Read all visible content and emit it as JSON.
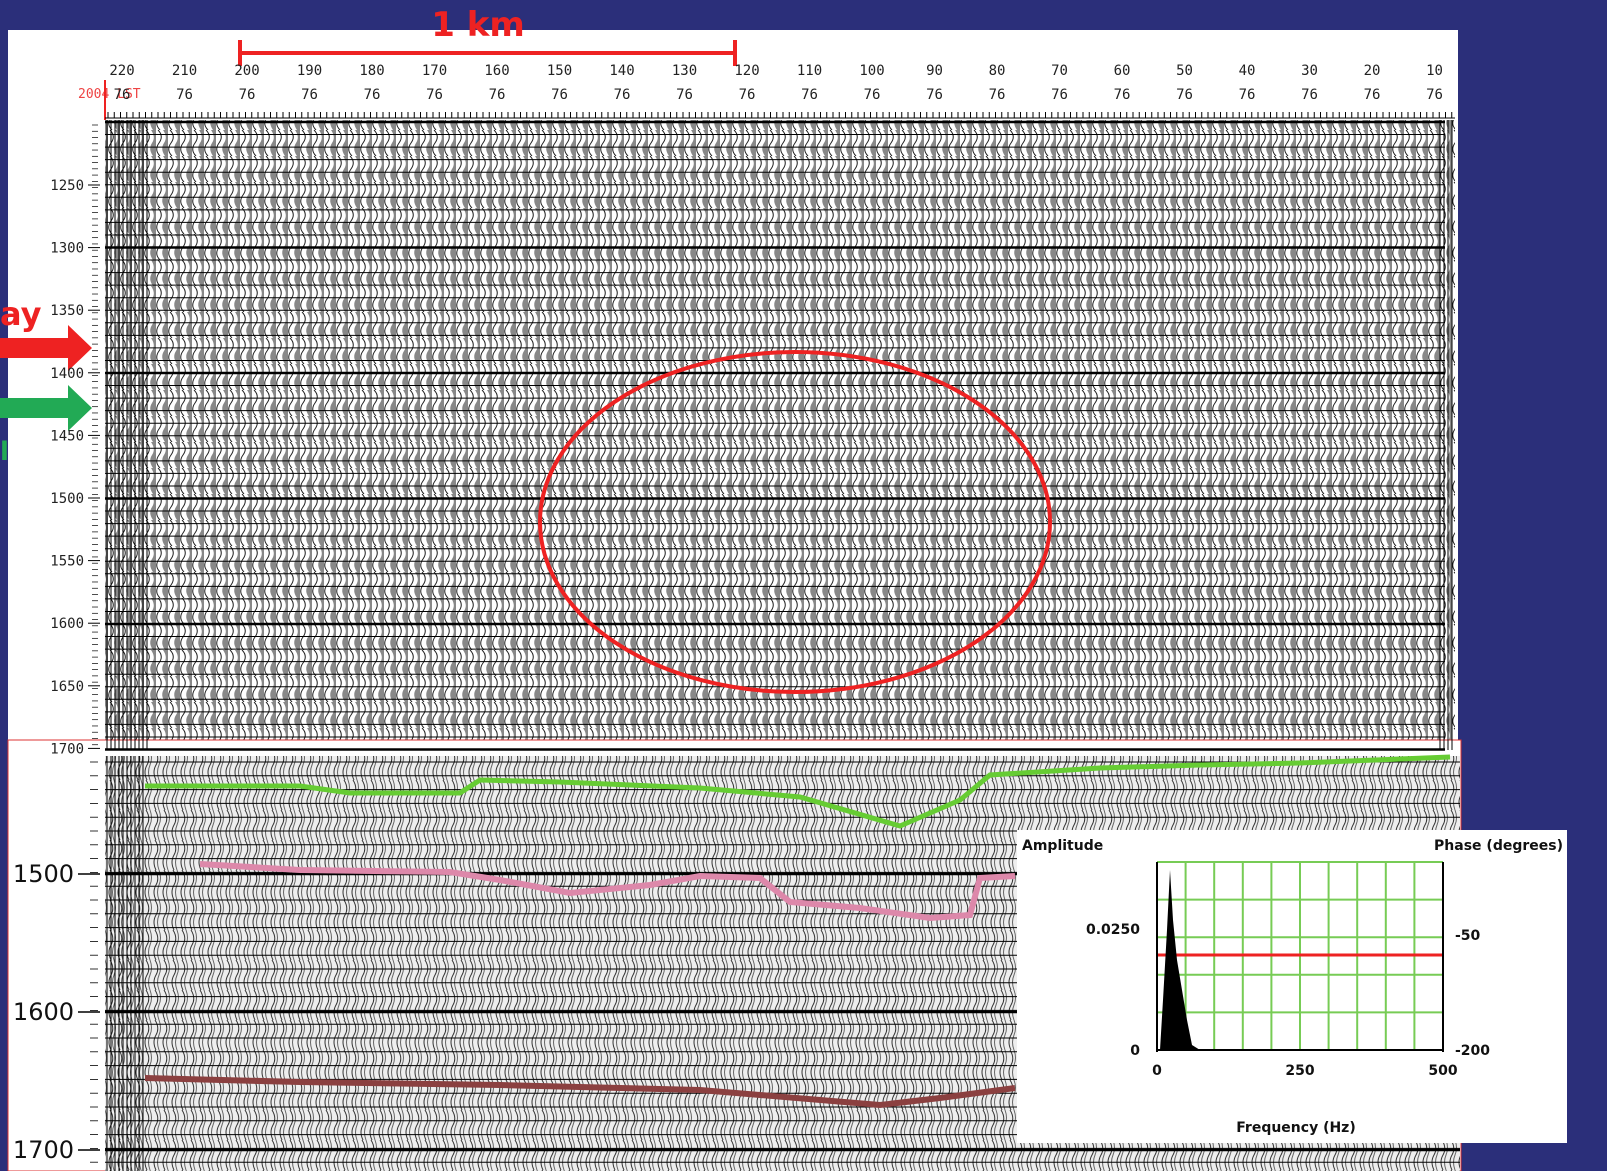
{
  "scale_bar": "1 km",
  "top_panel": {
    "header": "2004 LST",
    "columns": [
      {
        "trace": "220",
        "line": "76"
      },
      {
        "trace": "210",
        "line": "76"
      },
      {
        "trace": "200",
        "line": "76"
      },
      {
        "trace": "190",
        "line": "76"
      },
      {
        "trace": "180",
        "line": "76"
      },
      {
        "trace": "170",
        "line": "76"
      },
      {
        "trace": "160",
        "line": "76"
      },
      {
        "trace": "150",
        "line": "76"
      },
      {
        "trace": "140",
        "line": "76"
      },
      {
        "trace": "130",
        "line": "76"
      },
      {
        "trace": "120",
        "line": "76"
      },
      {
        "trace": "110",
        "line": "76"
      },
      {
        "trace": "100",
        "line": "76"
      },
      {
        "trace": "90",
        "line": "76"
      },
      {
        "trace": "80",
        "line": "76"
      },
      {
        "trace": "70",
        "line": "76"
      },
      {
        "trace": "60",
        "line": "76"
      },
      {
        "trace": "50",
        "line": "76"
      },
      {
        "trace": "40",
        "line": "76"
      },
      {
        "trace": "30",
        "line": "76"
      },
      {
        "trace": "20",
        "line": "76"
      },
      {
        "trace": "10",
        "line": "76"
      }
    ],
    "time_labels": [
      "1250",
      "1300",
      "1350",
      "1400",
      "1450",
      "1500",
      "1550",
      "1600",
      "1650",
      "1700"
    ]
  },
  "side_labels": {
    "red": "ay",
    "green": "l"
  },
  "bottom_panel": {
    "time_labels": [
      "1500",
      "1600",
      "1700"
    ]
  },
  "spectrum": {
    "amplitude_label": "Amplitude",
    "phase_label": "Phase (degrees)",
    "y_labels": [
      "0.0250",
      "0"
    ],
    "y2_labels": [
      "-50",
      "-200"
    ],
    "x_labels": [
      "0",
      "250",
      "500"
    ],
    "x_label": "Frequency (Hz)"
  }
}
